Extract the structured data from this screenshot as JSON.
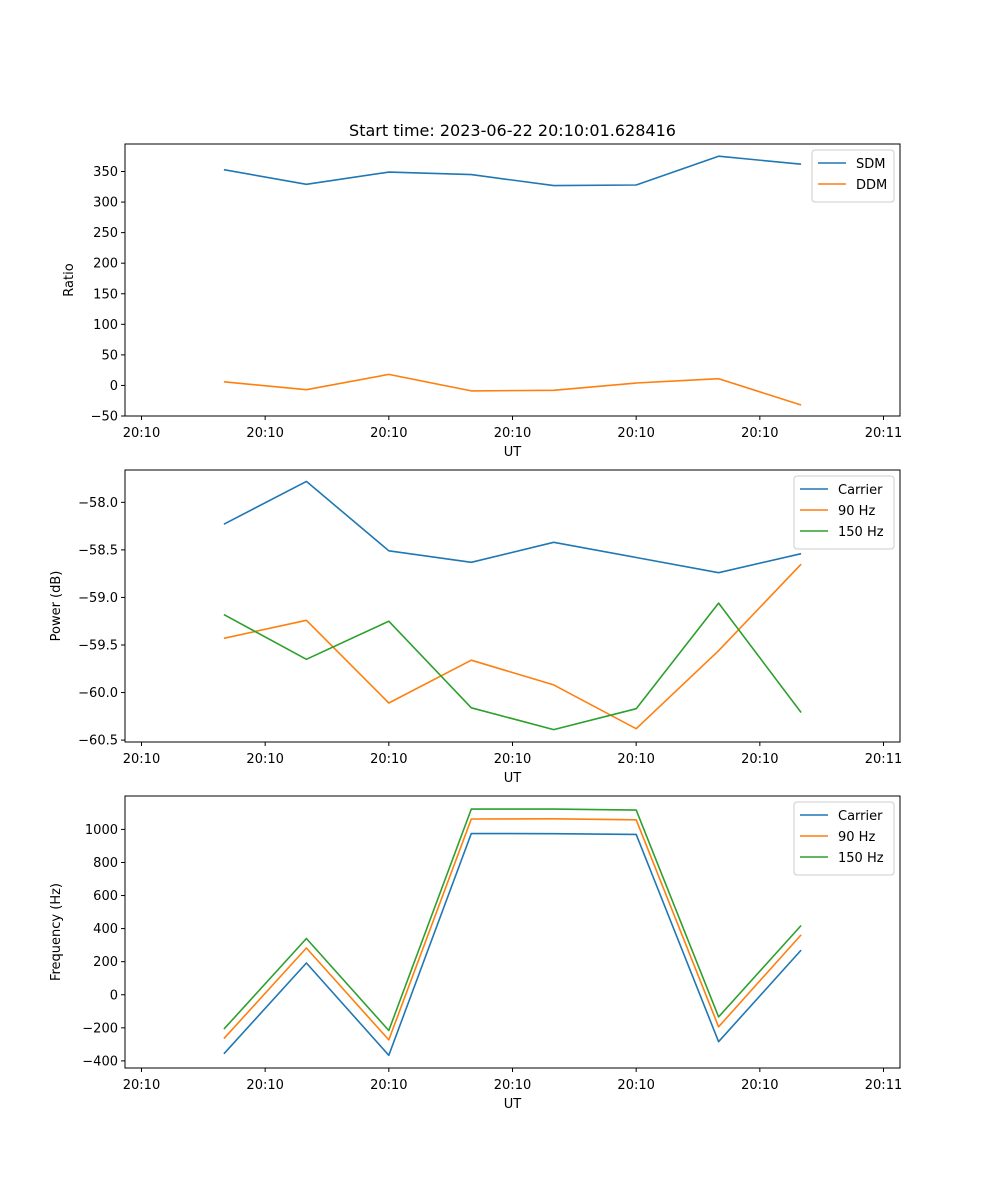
{
  "figure": {
    "title": "Start time: 2023-06-22 20:10:01.628416"
  },
  "chart_data": [
    {
      "type": "line",
      "title": "Start time: 2023-06-22 20:10:01.628416",
      "xlabel": "UT",
      "ylabel": "Ratio",
      "x": [
        1.0,
        2.0,
        3.0,
        4.0,
        5.0,
        6.0,
        7.0,
        8.0
      ],
      "xlim": [
        -0.2,
        9.2
      ],
      "xticks": [
        0,
        1.5,
        3,
        4.5,
        6,
        7.5,
        9
      ],
      "xtick_labels": [
        "20:10",
        "20:10",
        "20:10",
        "20:10",
        "20:10",
        "20:10",
        "20:11"
      ],
      "ylim": [
        -50,
        395
      ],
      "yticks": [
        -50,
        0,
        50,
        100,
        150,
        200,
        250,
        300,
        350
      ],
      "ytick_labels": [
        "−50",
        "0",
        "50",
        "100",
        "150",
        "200",
        "250",
        "300",
        "350"
      ],
      "grid": false,
      "legend": "top-right",
      "series": [
        {
          "name": "SDM",
          "color": "#1f77b4",
          "values": [
            353,
            329,
            349,
            345,
            327,
            328,
            375,
            362
          ]
        },
        {
          "name": "DDM",
          "color": "#ff7f0e",
          "values": [
            6,
            -7,
            18,
            -9,
            -8,
            4,
            11,
            -32
          ]
        }
      ]
    },
    {
      "type": "line",
      "title": "",
      "xlabel": "UT",
      "ylabel": "Power (dB)",
      "x": [
        1.0,
        2.0,
        3.0,
        4.0,
        5.0,
        6.0,
        7.0,
        8.0
      ],
      "xlim": [
        -0.2,
        9.2
      ],
      "xticks": [
        0,
        1.5,
        3,
        4.5,
        6,
        7.5,
        9
      ],
      "xtick_labels": [
        "20:10",
        "20:10",
        "20:10",
        "20:10",
        "20:10",
        "20:10",
        "20:11"
      ],
      "ylim": [
        -60.52,
        -57.66
      ],
      "yticks": [
        -60.5,
        -60.0,
        -59.5,
        -59.0,
        -58.5,
        -58.0
      ],
      "ytick_labels": [
        "−60.5",
        "−60.0",
        "−59.5",
        "−59.0",
        "−58.5",
        "−58.0"
      ],
      "grid": false,
      "legend": "top-right",
      "series": [
        {
          "name": "Carrier",
          "color": "#1f77b4",
          "values": [
            -58.23,
            -57.78,
            -58.51,
            -58.63,
            -58.42,
            -58.58,
            -58.74,
            -58.54
          ]
        },
        {
          "name": "90 Hz",
          "color": "#ff7f0e",
          "values": [
            -59.43,
            -59.24,
            -60.11,
            -59.66,
            -59.92,
            -60.38,
            -59.56,
            -58.65
          ]
        },
        {
          "name": "150 Hz",
          "color": "#2ca02c",
          "values": [
            -59.18,
            -59.65,
            -59.25,
            -60.16,
            -60.39,
            -60.17,
            -59.06,
            -60.21
          ]
        }
      ]
    },
    {
      "type": "line",
      "title": "",
      "xlabel": "UT",
      "ylabel": "Frequency (Hz)",
      "x": [
        1.0,
        2.0,
        3.0,
        4.0,
        5.0,
        6.0,
        7.0,
        8.0
      ],
      "xlim": [
        -0.2,
        9.2
      ],
      "xticks": [
        0,
        1.5,
        3,
        4.5,
        6,
        7.5,
        9
      ],
      "xtick_labels": [
        "20:10",
        "20:10",
        "20:10",
        "20:10",
        "20:10",
        "20:10",
        "20:11"
      ],
      "ylim": [
        -443,
        1202
      ],
      "yticks": [
        -400,
        -200,
        0,
        200,
        400,
        600,
        800,
        1000
      ],
      "ytick_labels": [
        "−400",
        "−200",
        "0",
        "200",
        "400",
        "600",
        "800",
        "1000"
      ],
      "grid": false,
      "legend": "top-right",
      "series": [
        {
          "name": "Carrier",
          "color": "#1f77b4",
          "values": [
            -357,
            192,
            -366,
            975,
            974,
            970,
            -284,
            270
          ]
        },
        {
          "name": "90 Hz",
          "color": "#ff7f0e",
          "values": [
            -265,
            283,
            -273,
            1063,
            1064,
            1058,
            -194,
            362
          ]
        },
        {
          "name": "150 Hz",
          "color": "#2ca02c",
          "values": [
            -208,
            340,
            -216,
            1123,
            1123,
            1117,
            -134,
            419
          ]
        }
      ]
    }
  ]
}
